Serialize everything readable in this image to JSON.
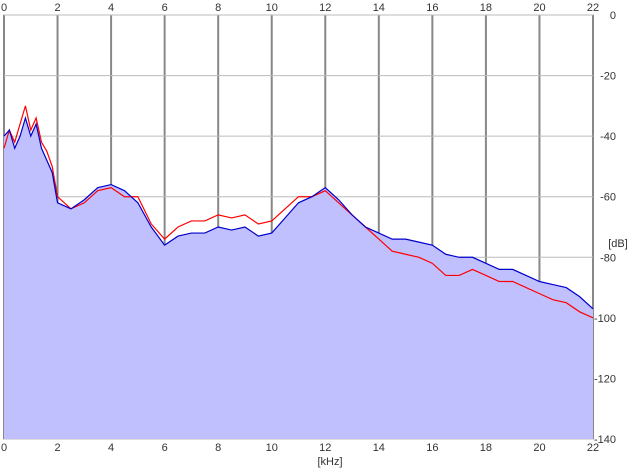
{
  "chart_data": {
    "type": "area",
    "xlabel": "[kHz]",
    "ylabel": "[dB]",
    "xlim": [
      0,
      22
    ],
    "ylim": [
      -140,
      0
    ],
    "x_ticks": [
      "0",
      "2",
      "4",
      "6",
      "8",
      "10",
      "12",
      "14",
      "16",
      "18",
      "20",
      "22"
    ],
    "y_ticks": [
      "0",
      "-20",
      "-40",
      "-60",
      "-80",
      "-100",
      "-120",
      "-140"
    ],
    "grid": true,
    "fill_color": "#c0c0ff",
    "series": [
      {
        "color": "#ff0000",
        "x": [
          0,
          0.2,
          0.4,
          0.6,
          0.8,
          1.0,
          1.2,
          1.4,
          1.6,
          1.8,
          2.0,
          2.5,
          3.0,
          3.5,
          4.0,
          4.5,
          5.0,
          5.5,
          6.0,
          6.5,
          7.0,
          7.5,
          8.0,
          8.5,
          9.0,
          9.5,
          10.0,
          10.5,
          11.0,
          11.5,
          12.0,
          12.5,
          13.0,
          13.5,
          14.0,
          14.5,
          15.0,
          15.5,
          16.0,
          16.5,
          17.0,
          17.5,
          18.0,
          18.5,
          19.0,
          19.5,
          20.0,
          20.5,
          21.0,
          21.5,
          22.0
        ],
        "values": [
          -44,
          -38,
          -42,
          -36,
          -30,
          -38,
          -34,
          -42,
          -45,
          -50,
          -60,
          -64,
          -62,
          -58,
          -57,
          -60,
          -60,
          -69,
          -74,
          -70,
          -68,
          -68,
          -66,
          -67,
          -66,
          -69,
          -68,
          -64,
          -60,
          -60,
          -58,
          -62,
          -66,
          -70,
          -74,
          -78,
          -79,
          -80,
          -82,
          -86,
          -86,
          -84,
          -86,
          -88,
          -88,
          -90,
          -92,
          -94,
          -95,
          -98,
          -100
        ]
      },
      {
        "color": "#0000cc",
        "x": [
          0,
          0.2,
          0.4,
          0.6,
          0.8,
          1.0,
          1.2,
          1.4,
          1.6,
          1.8,
          2.0,
          2.5,
          3.0,
          3.5,
          4.0,
          4.5,
          5.0,
          5.5,
          6.0,
          6.5,
          7.0,
          7.5,
          8.0,
          8.5,
          9.0,
          9.5,
          10.0,
          10.5,
          11.0,
          11.5,
          12.0,
          12.5,
          13.0,
          13.5,
          14.0,
          14.5,
          15.0,
          15.5,
          16.0,
          16.5,
          17.0,
          17.5,
          18.0,
          18.5,
          19.0,
          19.5,
          20.0,
          20.5,
          21.0,
          21.5,
          22.0
        ],
        "values": [
          -40,
          -38,
          -44,
          -40,
          -34,
          -40,
          -36,
          -44,
          -48,
          -52,
          -62,
          -64,
          -61,
          -57,
          -56,
          -58,
          -62,
          -70,
          -76,
          -73,
          -72,
          -72,
          -70,
          -71,
          -70,
          -73,
          -72,
          -67,
          -62,
          -60,
          -57,
          -61,
          -66,
          -70,
          -72,
          -74,
          -74,
          -75,
          -76,
          -79,
          -80,
          -80,
          -82,
          -84,
          -84,
          -86,
          -88,
          -89,
          -90,
          -93,
          -97
        ]
      }
    ]
  }
}
